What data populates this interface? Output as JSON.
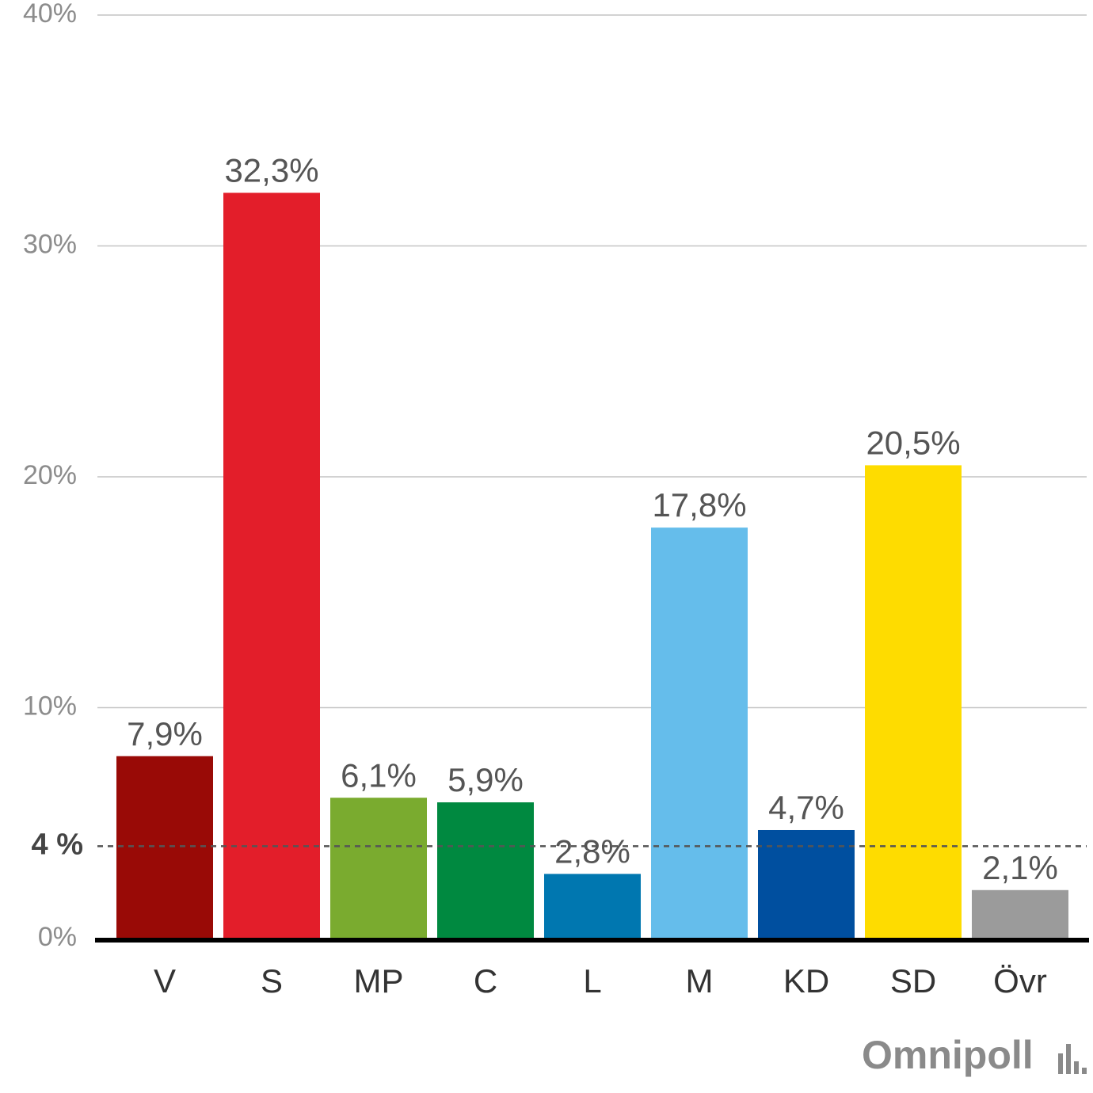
{
  "chart_data": {
    "type": "bar",
    "categories": [
      "V",
      "S",
      "MP",
      "C",
      "L",
      "M",
      "KD",
      "SD",
      "Övr"
    ],
    "values": [
      7.9,
      32.3,
      6.1,
      5.9,
      2.8,
      17.8,
      4.7,
      20.5,
      2.1
    ],
    "value_labels": [
      "7,9%",
      "32,3%",
      "6,1%",
      "5,9%",
      "2,8%",
      "17,8%",
      "4,7%",
      "20,5%",
      "2,1%"
    ],
    "colors": [
      "#990a06",
      "#e31e2a",
      "#7aab2f",
      "#008940",
      "#0077b0",
      "#65bdeb",
      "#004f9f",
      "#fedc00",
      "#9b9b9b"
    ],
    "ylim": [
      0,
      40
    ],
    "yticks": [
      {
        "value": 0,
        "label": "0%"
      },
      {
        "value": 10,
        "label": "10%"
      },
      {
        "value": 20,
        "label": "20%"
      },
      {
        "value": 30,
        "label": "30%"
      },
      {
        "value": 40,
        "label": "40%"
      }
    ],
    "threshold": {
      "value": 4,
      "label": "4 %"
    },
    "grid": true,
    "logo": "Omnipoll"
  }
}
